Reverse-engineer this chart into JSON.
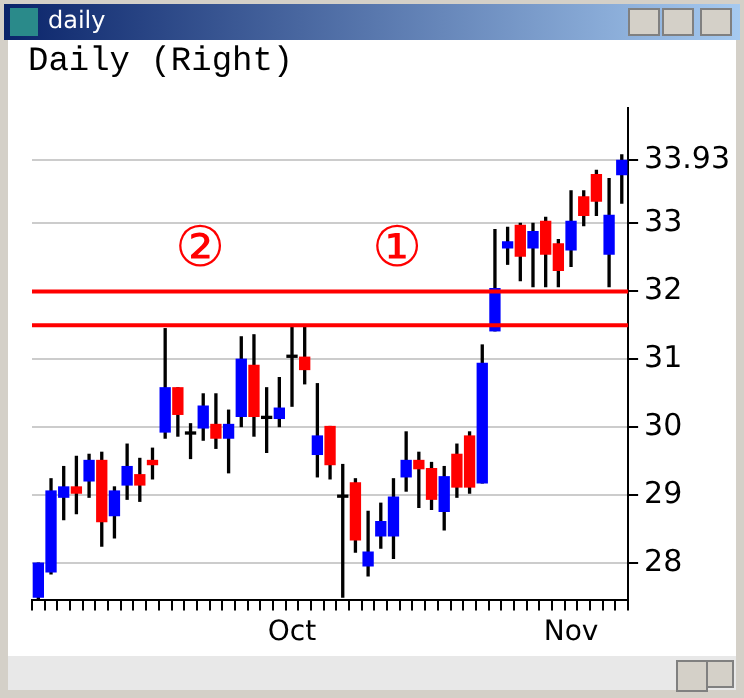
{
  "chart_data": {
    "type": "candlestick",
    "title": "Daily (Right)",
    "annotations": [
      "daily"
    ],
    "categories": [
      null,
      null,
      null,
      null,
      null,
      null,
      null,
      null,
      null,
      null,
      null,
      null,
      null,
      null,
      null,
      null,
      null,
      null,
      null,
      null,
      "Oct",
      null,
      null,
      null,
      null,
      null,
      null,
      null,
      null,
      null,
      null,
      null,
      null,
      null,
      null,
      null,
      null,
      null,
      null,
      null,
      null,
      null,
      "Nov",
      null,
      null,
      null,
      null
    ],
    "ohlc": [
      [
        27.5,
        28.0,
        27.45,
        28.0
      ],
      [
        27.87,
        29.24,
        27.84,
        29.06
      ],
      [
        28.97,
        29.42,
        28.64,
        29.12
      ],
      [
        29.12,
        29.57,
        28.73,
        29.03
      ],
      [
        29.21,
        29.6,
        28.97,
        29.51
      ],
      [
        29.51,
        29.63,
        28.25,
        28.61
      ],
      [
        28.7,
        29.12,
        28.37,
        29.06
      ],
      [
        29.15,
        29.75,
        28.94,
        29.42
      ],
      [
        29.3,
        29.54,
        28.91,
        29.15
      ],
      [
        29.51,
        29.69,
        29.24,
        29.45
      ],
      [
        29.93,
        31.45,
        29.84,
        30.58
      ],
      [
        30.58,
        30.58,
        29.87,
        30.19
      ],
      [
        29.9,
        30.05,
        29.54,
        29.9
      ],
      [
        29.99,
        30.49,
        29.81,
        30.31
      ],
      [
        30.04,
        30.49,
        29.69,
        29.84
      ],
      [
        29.84,
        30.25,
        29.33,
        30.04
      ],
      [
        30.16,
        31.33,
        30.01,
        31.0
      ],
      [
        30.91,
        31.36,
        29.87,
        30.16
      ],
      [
        30.13,
        30.58,
        29.63,
        30.13
      ],
      [
        30.13,
        30.73,
        30.01,
        30.28
      ],
      [
        31.03,
        31.51,
        30.31,
        31.03
      ],
      [
        31.03,
        31.51,
        30.64,
        30.85
      ],
      [
        29.6,
        30.64,
        29.27,
        29.87
      ],
      [
        30.01,
        30.01,
        29.24,
        29.45
      ],
      [
        28.97,
        29.45,
        27.5,
        28.97
      ],
      [
        29.18,
        29.24,
        28.16,
        28.34
      ],
      [
        27.96,
        28.76,
        27.81,
        28.16
      ],
      [
        28.4,
        28.88,
        28.22,
        28.61
      ],
      [
        28.4,
        29.24,
        28.07,
        28.97
      ],
      [
        29.27,
        29.93,
        29.06,
        29.51
      ],
      [
        29.51,
        29.63,
        28.82,
        29.39
      ],
      [
        29.39,
        29.48,
        28.79,
        28.94
      ],
      [
        28.76,
        29.42,
        28.49,
        29.27
      ],
      [
        29.6,
        29.75,
        28.97,
        29.12
      ],
      [
        29.87,
        29.93,
        29.03,
        29.12
      ],
      [
        29.18,
        31.21,
        29.18,
        30.94
      ],
      [
        31.42,
        32.91,
        31.42,
        32.04
      ],
      [
        32.64,
        32.94,
        32.4,
        32.73
      ],
      [
        32.97,
        33.0,
        32.16,
        32.52
      ],
      [
        32.64,
        33.0,
        32.07,
        32.88
      ],
      [
        33.03,
        33.09,
        32.07,
        32.55
      ],
      [
        32.7,
        32.76,
        32.07,
        32.31
      ],
      [
        32.61,
        33.48,
        32.37,
        33.03
      ],
      [
        33.39,
        33.48,
        32.97,
        33.12
      ],
      [
        33.72,
        33.78,
        33.12,
        33.33
      ],
      [
        32.55,
        33.66,
        32.07,
        33.12
      ],
      [
        33.72,
        34.01,
        33.3,
        33.93
      ]
    ],
    "colors": [
      "#0000ff",
      "#0000ff",
      "#0000ff",
      "#ff0000",
      "#0000ff",
      "#ff0000",
      "#0000ff",
      "#0000ff",
      "#ff0000",
      "#ff0000",
      "#0000ff",
      "#ff0000",
      "#000000",
      "#0000ff",
      "#ff0000",
      "#0000ff",
      "#0000ff",
      "#ff0000",
      "#000000",
      "#0000ff",
      "#000000",
      "#ff0000",
      "#0000ff",
      "#ff0000",
      "#000000",
      "#ff0000",
      "#0000ff",
      "#0000ff",
      "#0000ff",
      "#0000ff",
      "#ff0000",
      "#ff0000",
      "#0000ff",
      "#ff0000",
      "#ff0000",
      "#0000ff",
      "#0000ff",
      "#0000ff",
      "#ff0000",
      "#0000ff",
      "#ff0000",
      "#ff0000",
      "#0000ff",
      "#ff0000",
      "#ff0000",
      "#0000ff",
      "#0000ff"
    ],
    "ylim": [
      27.45,
      34.7
    ],
    "yticks": [
      28,
      29,
      30,
      31,
      32,
      33,
      33.93
    ],
    "grid": "y",
    "ref_lines": [
      {
        "axis": "y",
        "value": 32.0,
        "label": "①",
        "color": "#ff0000"
      },
      {
        "axis": "y",
        "value": 31.5,
        "label": "②",
        "color": "#ff0000"
      }
    ]
  }
}
